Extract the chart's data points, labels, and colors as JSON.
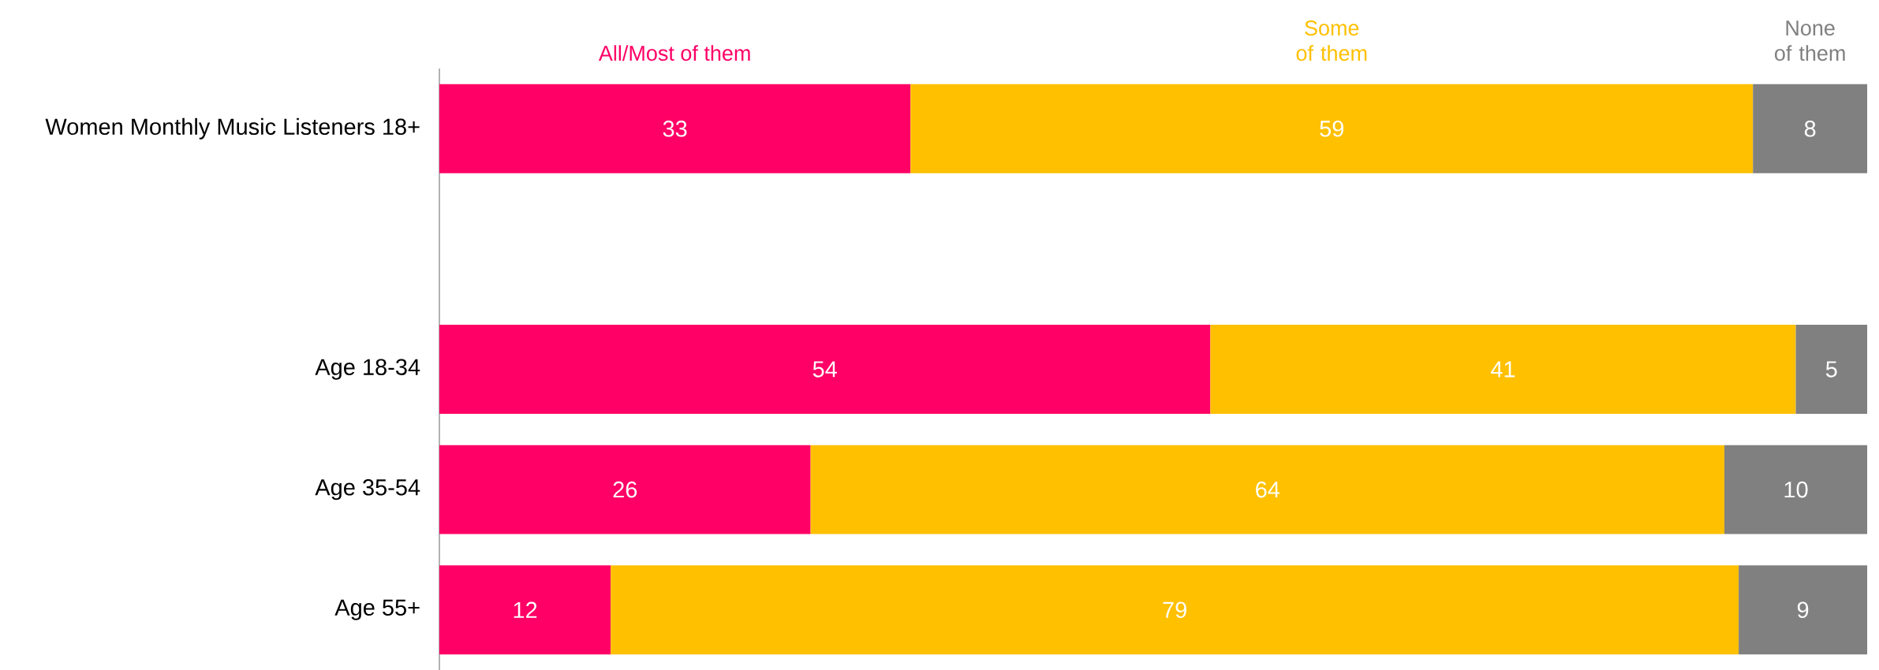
{
  "chart_data": {
    "type": "bar",
    "orientation": "horizontal",
    "stacked": true,
    "categories": [
      "Women Monthly Music Listeners 18+",
      null,
      "Age 18-34",
      "Age 35-54",
      "Age 55+"
    ],
    "series": [
      {
        "name": "All/Most of them",
        "color": "#ff0066",
        "values": [
          33,
          null,
          54,
          26,
          12
        ]
      },
      {
        "name": "Some of them",
        "color": "#ffc000",
        "values": [
          59,
          null,
          41,
          64,
          79
        ]
      },
      {
        "name": "None of them",
        "color": "#808080",
        "values": [
          8,
          null,
          5,
          10,
          9
        ]
      }
    ],
    "data_labels": true,
    "legend": "top",
    "grid": false
  }
}
